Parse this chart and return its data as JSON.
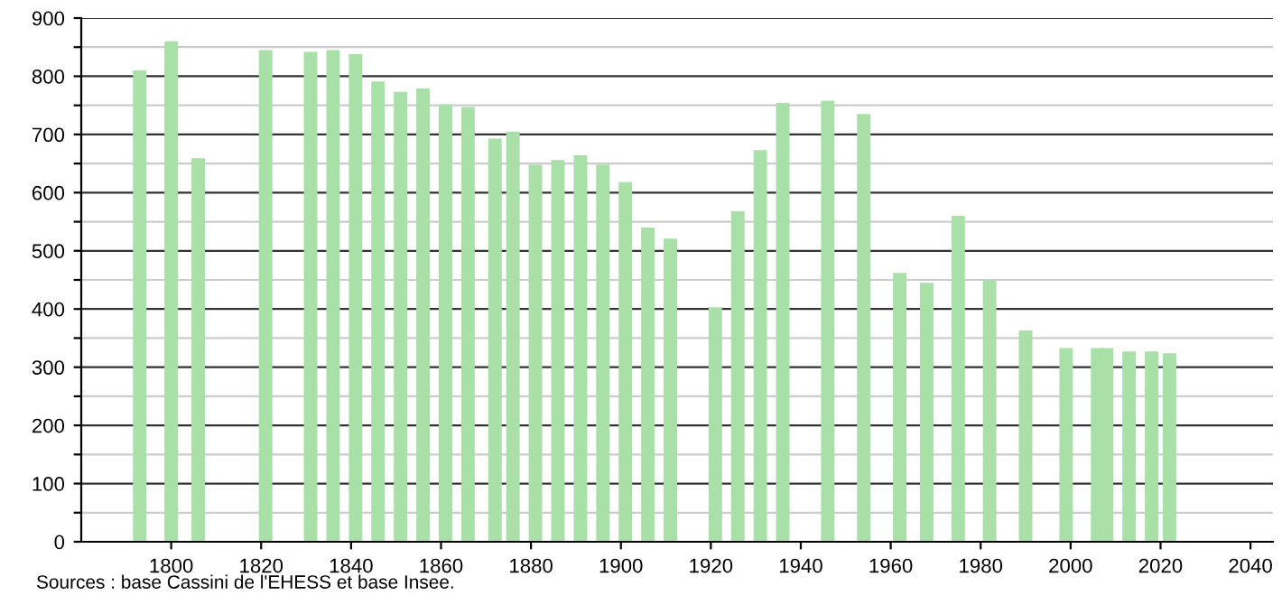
{
  "chart_data": {
    "type": "bar",
    "x": [
      1793,
      1800,
      1806,
      1821,
      1831,
      1836,
      1841,
      1846,
      1851,
      1856,
      1861,
      1866,
      1872,
      1876,
      1881,
      1886,
      1891,
      1896,
      1901,
      1906,
      1911,
      1921,
      1926,
      1931,
      1936,
      1946,
      1954,
      1962,
      1968,
      1975,
      1982,
      1990,
      1999,
      2006,
      2008,
      2013,
      2018,
      2022
    ],
    "values": [
      810,
      860,
      659,
      845,
      842,
      845,
      838,
      791,
      773,
      779,
      752,
      747,
      693,
      705,
      648,
      656,
      664,
      648,
      618,
      540,
      521,
      403,
      568,
      673,
      754,
      758,
      735,
      462,
      445,
      560,
      449,
      363,
      333,
      333,
      333,
      327,
      327,
      324
    ],
    "color": "#a8e0a8",
    "xlim": [
      1780,
      2045
    ],
    "xticks": [
      1800,
      1820,
      1840,
      1860,
      1880,
      1900,
      1920,
      1940,
      1960,
      1980,
      2000,
      2020,
      2040
    ],
    "ylim": [
      0,
      900
    ],
    "yticks": [
      0,
      {
        "value": 50,
        "label": null
      },
      100,
      {
        "value": 150,
        "label": null
      },
      200,
      {
        "value": 250,
        "label": null
      },
      300,
      {
        "value": 350,
        "label": null
      },
      400,
      {
        "value": 450,
        "label": null
      },
      500,
      {
        "value": 550,
        "label": null
      },
      600,
      {
        "value": 650,
        "label": null
      },
      700,
      {
        "value": 750,
        "label": null
      },
      800,
      {
        "value": 850,
        "label": null
      },
      900
    ],
    "grid": "y",
    "annotations": [
      "Sources : base Cassini de l'EHESS et base Insee."
    ]
  }
}
